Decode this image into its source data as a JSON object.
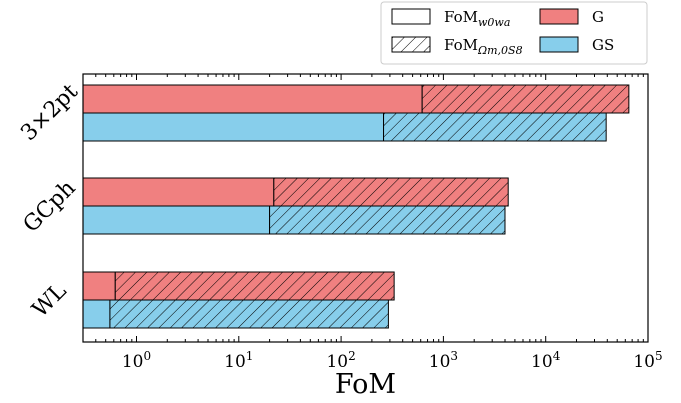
{
  "chart_data": {
    "type": "bar",
    "orientation": "horizontal",
    "xscale": "log",
    "xlim": [
      0.3,
      100000
    ],
    "xlabel": "FoM",
    "xtick_labels": [
      {
        "base": "10",
        "exp": "0"
      },
      {
        "base": "10",
        "exp": "1"
      },
      {
        "base": "10",
        "exp": "2"
      },
      {
        "base": "10",
        "exp": "3"
      },
      {
        "base": "10",
        "exp": "4"
      },
      {
        "base": "10",
        "exp": "5"
      }
    ],
    "categories": [
      "3×2pt",
      "GCph",
      "WL"
    ],
    "series": [
      {
        "name": "G",
        "color": "#F08080",
        "fom_w0wa": [
          620,
          22,
          0.62
        ],
        "fom_om_s8": [
          65000,
          4300,
          330
        ]
      },
      {
        "name": "GS",
        "color": "#87CEEB",
        "fom_w0wa": [
          260,
          20,
          0.55
        ],
        "fom_om_s8": [
          39000,
          4000,
          290
        ]
      }
    ],
    "legend": {
      "placement": "top-right",
      "entries": [
        {
          "label": "FoM",
          "subscript": "w0wa",
          "style": "plain"
        },
        {
          "label": "G",
          "style": "G"
        },
        {
          "label": "FoM",
          "subscript": "Ωm,0S8",
          "style": "hatched"
        },
        {
          "label": "GS",
          "style": "GS"
        }
      ]
    }
  }
}
